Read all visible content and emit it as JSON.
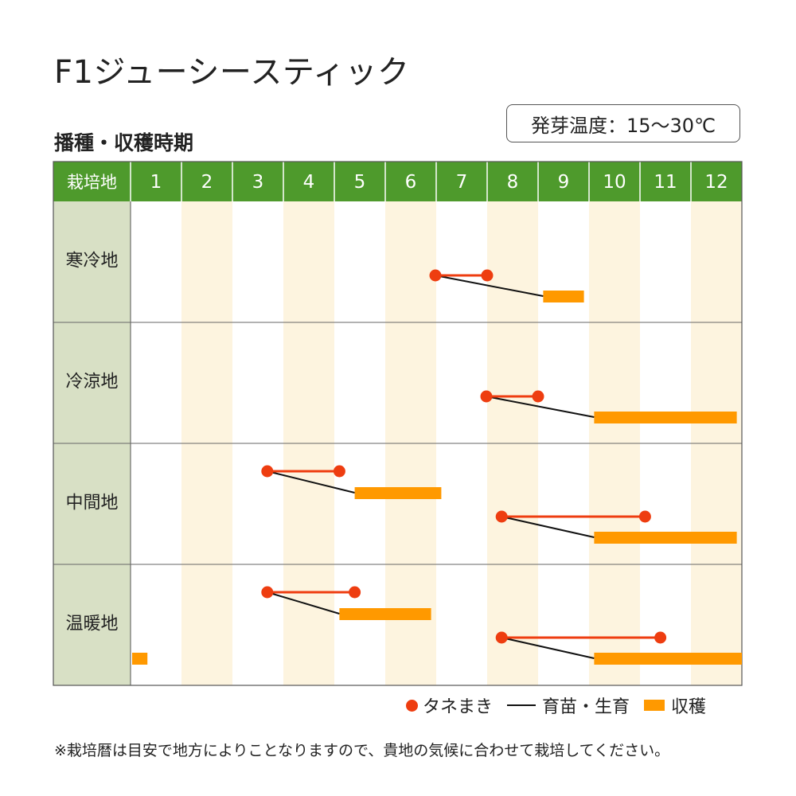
{
  "title": "F1ジューシースティック",
  "subtitle": "播種・収穫時期",
  "germination_temp": "発芽温度：15〜30℃",
  "legend": {
    "sowing": "タネまき",
    "nursery": "育苗・生育",
    "harvest": "収穫"
  },
  "note": "※栽培暦は目安で地方によりことなりますので、貴地の気候に合わせて栽培してください。",
  "colors": {
    "header_green": "#4e9a2c",
    "label_bg": "#d8e0c5",
    "shade": "#fdf4df",
    "sowing": "#ee3d10",
    "harvest": "#ff9900",
    "nursery": "#111111"
  },
  "chart_data": {
    "type": "gantt",
    "header_label": "栽培地",
    "months": [
      "1",
      "2",
      "3",
      "4",
      "5",
      "6",
      "7",
      "8",
      "9",
      "10",
      "11",
      "12"
    ],
    "regions": [
      {
        "name": "寒冷地",
        "schedules": [
          {
            "sow": [
              7.0,
              8.0
            ],
            "harvest": [
              9.1,
              9.9
            ]
          }
        ]
      },
      {
        "name": "冷涼地",
        "schedules": [
          {
            "sow": [
              8.0,
              9.0
            ],
            "harvest": [
              10.1,
              12.9
            ]
          }
        ]
      },
      {
        "name": "中間地",
        "schedules": [
          {
            "sow": [
              3.7,
              5.1
            ],
            "harvest": [
              5.4,
              7.1
            ]
          },
          {
            "sow": [
              8.3,
              11.1
            ],
            "harvest": [
              10.1,
              12.9
            ]
          }
        ]
      },
      {
        "name": "温暖地",
        "schedules": [
          {
            "sow": [
              3.7,
              5.4
            ],
            "harvest": [
              5.1,
              6.9
            ]
          },
          {
            "sow": [
              8.3,
              11.4
            ],
            "harvest": [
              10.1,
              13.0
            ]
          },
          {
            "harvest": [
              1.0,
              1.3
            ]
          }
        ]
      }
    ]
  }
}
